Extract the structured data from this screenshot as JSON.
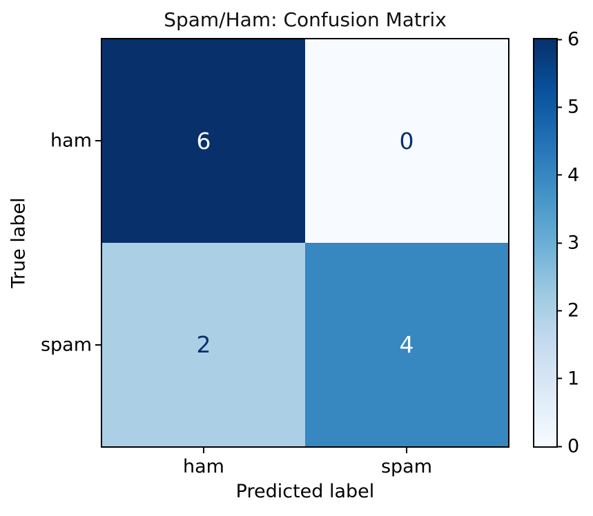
{
  "chart_data": {
    "type": "heatmap",
    "title": "Spam/Ham: Confusion Matrix",
    "xlabel": "Predicted label",
    "ylabel": "True label",
    "x_categories": [
      "ham",
      "spam"
    ],
    "y_categories": [
      "ham",
      "spam"
    ],
    "matrix": [
      [
        6,
        0
      ],
      [
        2,
        4
      ]
    ],
    "value_range": [
      0,
      6
    ],
    "colormap": "Blues",
    "grid": false,
    "cell_colors": [
      [
        "#08306b",
        "#f7fbff"
      ],
      [
        "#abd0e6",
        "#3787c0"
      ]
    ],
    "cell_text_colors": [
      [
        "#f7fbff",
        "#08306b"
      ],
      [
        "#08306b",
        "#f7fbff"
      ]
    ],
    "colorbar": {
      "position": "right",
      "min": 0,
      "max": 6,
      "ticks": [
        0,
        1,
        2,
        3,
        4,
        5,
        6
      ],
      "gradient_stops": [
        {
          "value": 0,
          "color": "#f7fbff"
        },
        {
          "value": 0.75,
          "color": "#deebf7"
        },
        {
          "value": 1.5,
          "color": "#c6dbef"
        },
        {
          "value": 2.25,
          "color": "#9ecae1"
        },
        {
          "value": 3,
          "color": "#6baed6"
        },
        {
          "value": 3.75,
          "color": "#4292c6"
        },
        {
          "value": 4.5,
          "color": "#2171b5"
        },
        {
          "value": 5.25,
          "color": "#08519c"
        },
        {
          "value": 6,
          "color": "#08306b"
        }
      ]
    }
  }
}
